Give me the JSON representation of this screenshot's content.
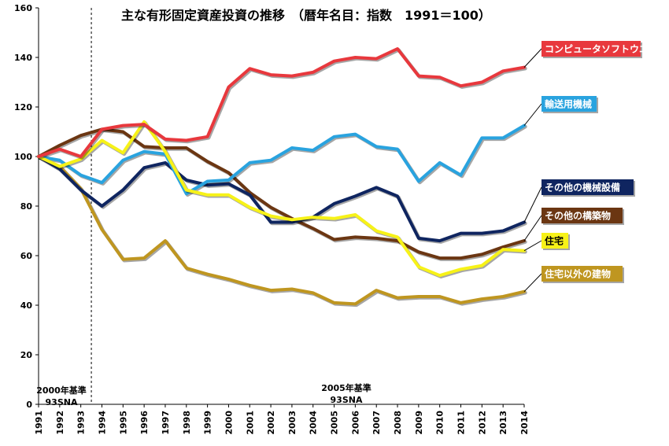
{
  "chart_data": {
    "type": "line",
    "title": "主な有形固定資産投資の推移　（暦年名目：指数　1991＝100）",
    "xlabel": "",
    "ylabel": "",
    "ylim": [
      0,
      160
    ],
    "y_ticks": [
      "0",
      "20",
      "40",
      "60",
      "80",
      "100",
      "120",
      "140",
      "160"
    ],
    "grid": false,
    "categories": [
      "1991",
      "1992",
      "1993",
      "1994",
      "1995",
      "1996",
      "1997",
      "1998",
      "1999",
      "2000",
      "2001",
      "2002",
      "2003",
      "2004",
      "2005",
      "2006",
      "2007",
      "2008",
      "2009",
      "2010",
      "2011",
      "2012",
      "2013",
      "2014"
    ],
    "annotations": {
      "base_2000_line1": "2000年基準",
      "base_2000_line2": "93SNA",
      "base_2005_line1": "2005年基準",
      "base_2005_line2": "93SNA"
    },
    "divider_between": [
      "1993",
      "1994"
    ],
    "series": [
      {
        "name": "コンピュータソフトウエア",
        "color": "#e8383d",
        "label_text_color": "#ffffff",
        "values": [
          100,
          103,
          100,
          111,
          112.5,
          113,
          107,
          106.5,
          108,
          128,
          135.5,
          133,
          132.5,
          134,
          138.5,
          140,
          139.5,
          143.5,
          132.5,
          132,
          128.5,
          130,
          134.5,
          136
        ]
      },
      {
        "name": "輸送用機械",
        "color": "#29a3df",
        "label_text_color": "#ffffff",
        "values": [
          100,
          98.5,
          92.5,
          89.5,
          98.5,
          102,
          101,
          85,
          90,
          90.5,
          97.5,
          98.5,
          103.5,
          102.5,
          108,
          109,
          104,
          103,
          90,
          97.5,
          92.5,
          107.5,
          107.5,
          112.5
        ]
      },
      {
        "name": "その他の機械設備",
        "color": "#0f2560",
        "label_text_color": "#ffffff",
        "values": [
          100,
          95,
          86.5,
          80,
          86.5,
          95.5,
          97.5,
          90.5,
          88.5,
          89,
          84.5,
          73.5,
          73.5,
          75.5,
          81,
          84,
          87.5,
          84,
          67,
          66,
          69,
          69,
          70,
          73.5
        ]
      },
      {
        "name": "その他の構築物",
        "color": "#6b3612",
        "label_text_color": "#ffffff",
        "values": [
          100,
          104.5,
          108.5,
          111,
          110,
          104,
          103.5,
          103.5,
          98,
          93.5,
          85.5,
          79.5,
          75,
          71,
          66.5,
          67.5,
          67,
          66,
          61.5,
          59,
          59,
          60.5,
          63.5,
          66
        ]
      },
      {
        "name": "住宅",
        "color": "#f7f218",
        "label_text_color": "#000000",
        "values": [
          100,
          96,
          99,
          106.5,
          101.5,
          114,
          102,
          86.5,
          84.5,
          84.5,
          79.5,
          76,
          74.5,
          75.5,
          75,
          76.5,
          70,
          67.5,
          55.5,
          52,
          54.5,
          56,
          62.5,
          62
        ]
      },
      {
        "name": "住宅以外の建物",
        "color": "#bf9620",
        "label_text_color": "#ffffff",
        "values": [
          100,
          96,
          87,
          70.5,
          58.5,
          59,
          66,
          55,
          52.5,
          50.5,
          48,
          46,
          46.5,
          45,
          41,
          40.5,
          46,
          43,
          43.5,
          43.5,
          41,
          42.5,
          43.5,
          45.5
        ]
      }
    ]
  }
}
